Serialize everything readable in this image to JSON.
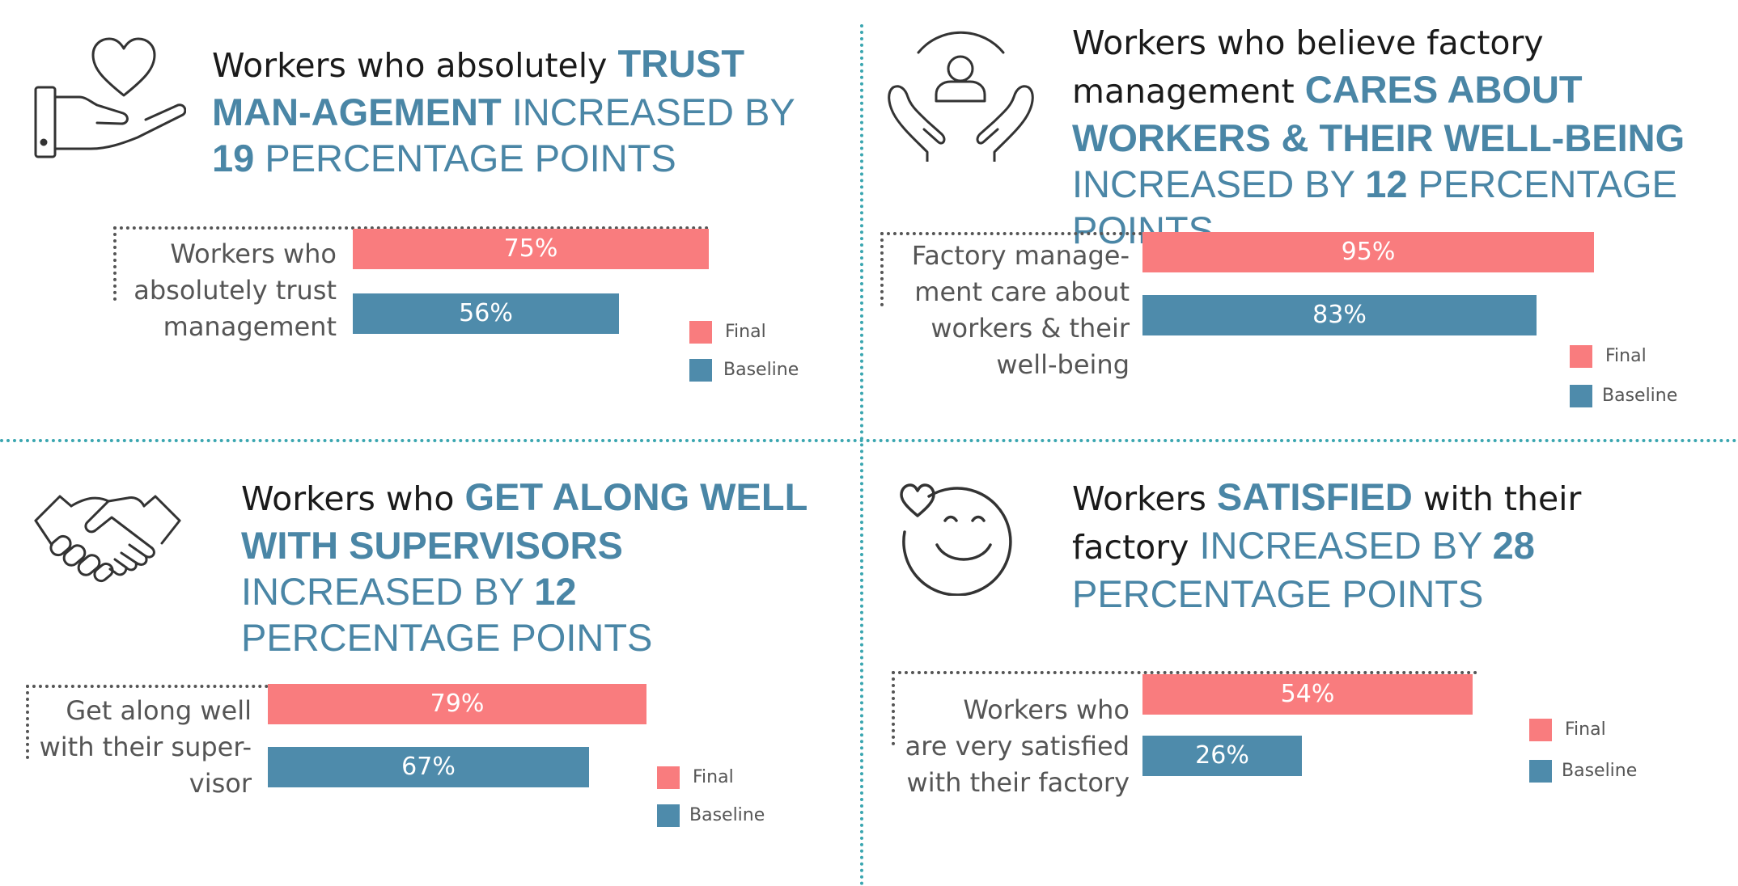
{
  "colors": {
    "final": "#f97c7e",
    "baseline": "#4e8bab",
    "accent": "#4a86a6",
    "divider": "#3aa6b0"
  },
  "legend": {
    "final": "Final",
    "baseline": "Baseline"
  },
  "panels": [
    {
      "icon": "heart-in-hand-icon",
      "headline": {
        "t1": "Workers who absolutely ",
        "b1": "TRUST MAN-AGEMENT",
        "t2": " INCREASED BY ",
        "b2": "19",
        "t3": " PERCENTAGE POINTS"
      },
      "label_lines": [
        "Workers who",
        "absolutely trust",
        "management"
      ]
    },
    {
      "icon": "person-in-hands-icon",
      "headline": {
        "t1": "Workers who believe factory management ",
        "b1": "CARES ABOUT  WORKERS & THEIR WELL-BEING",
        "t2": " INCREASED BY ",
        "b2": "12",
        "t3": " PERCENTAGE POINTS"
      },
      "label_lines": [
        "Factory manage-",
        "ment care about",
        "workers & their",
        "well-being"
      ]
    },
    {
      "icon": "handshake-icon",
      "headline": {
        "t1": "Workers who ",
        "b1": "GET ALONG WELL WITH SUPERVISORS",
        "t2": " INCREASED BY ",
        "b2": "12",
        "t3": " PERCENTAGE POINTS"
      },
      "label_lines": [
        "Get along well",
        "with their super-",
        "visor"
      ]
    },
    {
      "icon": "smiley-with-heart-icon",
      "headline": {
        "t1": "Workers ",
        "b1": "SATISFIED",
        "t2": " with their factory",
        "t3": " INCREASED BY ",
        "b2": "28",
        "t4": " PERCENTAGE POINTS"
      },
      "label_lines": [
        "Workers who",
        "are very satisfied",
        "with their factory"
      ]
    }
  ],
  "chart_data": [
    {
      "type": "bar",
      "categories": [
        "Workers who absolutely trust management"
      ],
      "series": [
        {
          "name": "Final",
          "values": [
            75
          ]
        },
        {
          "name": "Baseline",
          "values": [
            56
          ]
        }
      ],
      "data_labels": {
        "final": "75%",
        "baseline": "56%"
      },
      "ylim": [
        0,
        100
      ]
    },
    {
      "type": "bar",
      "categories": [
        "Factory management care about workers & their well-being"
      ],
      "series": [
        {
          "name": "Final",
          "values": [
            95
          ]
        },
        {
          "name": "Baseline",
          "values": [
            83
          ]
        }
      ],
      "data_labels": {
        "final": "95%",
        "baseline": "83%"
      },
      "ylim": [
        0,
        100
      ]
    },
    {
      "type": "bar",
      "categories": [
        "Get along well with their supervisor"
      ],
      "series": [
        {
          "name": "Final",
          "values": [
            79
          ]
        },
        {
          "name": "Baseline",
          "values": [
            67
          ]
        }
      ],
      "data_labels": {
        "final": "79%",
        "baseline": "67%"
      },
      "ylim": [
        0,
        100
      ]
    },
    {
      "type": "bar",
      "categories": [
        "Workers who are very satisfied with their factory"
      ],
      "series": [
        {
          "name": "Final",
          "values": [
            54
          ]
        },
        {
          "name": "Baseline",
          "values": [
            26
          ]
        }
      ],
      "data_labels": {
        "final": "54%",
        "baseline": "26%"
      },
      "ylim": [
        0,
        100
      ]
    }
  ]
}
